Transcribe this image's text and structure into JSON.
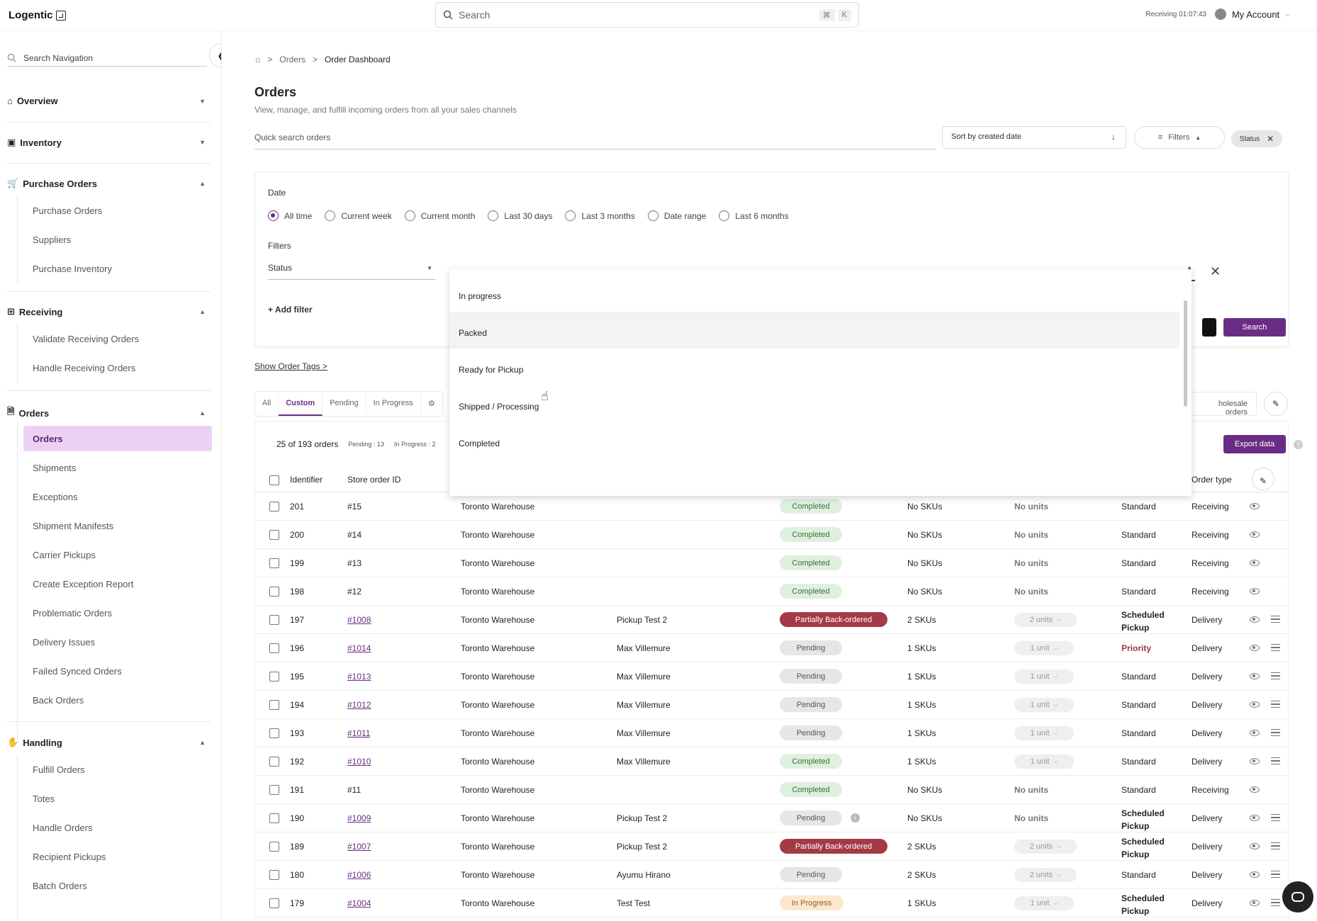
{
  "app": {
    "name": "Logentic"
  },
  "topbar": {
    "search_placeholder": "Search",
    "kbd1": "⌘",
    "kbd2": "K",
    "timer": "Receiving 01:07:43",
    "account": "My Account"
  },
  "sidebar": {
    "search_placeholder": "Search Navigation",
    "sections": {
      "overview": "Overview",
      "inventory": "Inventory",
      "purchase_orders": "Purchase Orders",
      "receiving": "Receiving",
      "orders": "Orders",
      "handling": "Handling"
    },
    "purchase_items": [
      "Purchase Orders",
      "Suppliers",
      "Purchase Inventory"
    ],
    "receiving_items": [
      "Validate Receiving Orders",
      "Handle Receiving Orders"
    ],
    "orders_items": [
      "Orders",
      "Shipments",
      "Exceptions",
      "Shipment Manifests",
      "Carrier Pickups",
      "Create Exception Report",
      "Problematic Orders",
      "Delivery Issues",
      "Failed Synced Orders",
      "Back Orders"
    ],
    "handling_items": [
      "Fulfill Orders",
      "Totes",
      "Handle Orders",
      "Recipient Pickups",
      "Batch Orders"
    ]
  },
  "breadcrumb": {
    "level1": "Orders",
    "current": "Order Dashboard"
  },
  "page": {
    "title": "Orders",
    "subtitle": "View, manage, and fulfill incoming orders from all your sales channels",
    "quick_search_placeholder": "Quick search orders",
    "sort_label": "Sort by created date",
    "filters_label": "Filters",
    "status_chip": "Status"
  },
  "filter_panel": {
    "date_label": "Date",
    "date_options": [
      "All time",
      "Current week",
      "Current month",
      "Last 30 days",
      "Last 3 months",
      "Date range",
      "Last 6 months"
    ],
    "filters_label": "Filters",
    "status_field": "Status",
    "add_filter": "+ Add filter",
    "search_button": "Search"
  },
  "show_tags": "Show Order Tags >",
  "tabs": [
    "All",
    "Custom",
    "Pending",
    "In Progress"
  ],
  "wholesale_tab": "holesale orders",
  "summary": {
    "count": "25 of 193 orders",
    "pending": "Pending : 13",
    "in_progress": "In Progress : 2",
    "export": "Export data"
  },
  "table": {
    "headers": {
      "identifier": "Identifier",
      "store_order_id": "Store order ID",
      "order_type": "Order type"
    },
    "rows": [
      {
        "id": "201",
        "store": "#15",
        "wh": "Toronto Warehouse",
        "cust": "",
        "status": "Completed",
        "skus": "No SKUs",
        "units": "No units",
        "prio1": "Standard",
        "prio2": "",
        "type": "Receiving"
      },
      {
        "id": "200",
        "store": "#14",
        "wh": "Toronto Warehouse",
        "cust": "",
        "status": "Completed",
        "skus": "No SKUs",
        "units": "No units",
        "prio1": "Standard",
        "prio2": "",
        "type": "Receiving"
      },
      {
        "id": "199",
        "store": "#13",
        "wh": "Toronto Warehouse",
        "cust": "",
        "status": "Completed",
        "skus": "No SKUs",
        "units": "No units",
        "prio1": "Standard",
        "prio2": "",
        "type": "Receiving"
      },
      {
        "id": "198",
        "store": "#12",
        "wh": "Toronto Warehouse",
        "cust": "",
        "status": "Completed",
        "skus": "No SKUs",
        "units": "No units",
        "prio1": "Standard",
        "prio2": "",
        "type": "Receiving"
      },
      {
        "id": "197",
        "store": "#1008",
        "wh": "Toronto Warehouse",
        "cust": "Pickup Test 2",
        "status": "Partially Back-ordered",
        "skus": "2 SKUs",
        "units": "2 units",
        "prio1": "Scheduled",
        "prio2": "Pickup",
        "type": "Delivery"
      },
      {
        "id": "196",
        "store": "#1014",
        "wh": "Toronto Warehouse",
        "cust": "Max Villemure",
        "status": "Pending",
        "skus": "1 SKUs",
        "units": "1 unit",
        "prio1": "Priority",
        "prio2": "",
        "type": "Delivery"
      },
      {
        "id": "195",
        "store": "#1013",
        "wh": "Toronto Warehouse",
        "cust": "Max Villemure",
        "status": "Pending",
        "skus": "1 SKUs",
        "units": "1 unit",
        "prio1": "Standard",
        "prio2": "",
        "type": "Delivery"
      },
      {
        "id": "194",
        "store": "#1012",
        "wh": "Toronto Warehouse",
        "cust": "Max Villemure",
        "status": "Pending",
        "skus": "1 SKUs",
        "units": "1 unit",
        "prio1": "Standard",
        "prio2": "",
        "type": "Delivery"
      },
      {
        "id": "193",
        "store": "#1011",
        "wh": "Toronto Warehouse",
        "cust": "Max Villemure",
        "status": "Pending",
        "skus": "1 SKUs",
        "units": "1 unit",
        "prio1": "Standard",
        "prio2": "",
        "type": "Delivery"
      },
      {
        "id": "192",
        "store": "#1010",
        "wh": "Toronto Warehouse",
        "cust": "Max Villemure",
        "status": "Completed",
        "skus": "1 SKUs",
        "units": "1 unit",
        "prio1": "Standard",
        "prio2": "",
        "type": "Delivery"
      },
      {
        "id": "191",
        "store": "#11",
        "wh": "Toronto Warehouse",
        "cust": "",
        "status": "Completed",
        "skus": "No SKUs",
        "units": "No units",
        "prio1": "Standard",
        "prio2": "",
        "type": "Receiving"
      },
      {
        "id": "190",
        "store": "#1009",
        "wh": "Toronto Warehouse",
        "cust": "Pickup Test 2",
        "status": "Pending",
        "skus": "No SKUs",
        "units": "No units",
        "prio1": "Scheduled",
        "prio2": "Pickup",
        "type": "Delivery"
      },
      {
        "id": "189",
        "store": "#1007",
        "wh": "Toronto Warehouse",
        "cust": "Pickup Test 2",
        "status": "Partially Back-ordered",
        "skus": "2 SKUs",
        "units": "2 units",
        "prio1": "Scheduled",
        "prio2": "Pickup",
        "type": "Delivery"
      },
      {
        "id": "180",
        "store": "#1006",
        "wh": "Toronto Warehouse",
        "cust": "Ayumu Hirano",
        "status": "Pending",
        "skus": "2 SKUs",
        "units": "2 units",
        "prio1": "Standard",
        "prio2": "",
        "type": "Delivery"
      },
      {
        "id": "179",
        "store": "#1004",
        "wh": "Toronto Warehouse",
        "cust": "Test Test",
        "status": "In Progress",
        "skus": "1 SKUs",
        "units": "1 unit",
        "prio1": "Scheduled",
        "prio2": "Pickup",
        "type": "Delivery"
      }
    ]
  },
  "dropdown": {
    "options": [
      "In progress",
      "Packed",
      "Ready for Pickup",
      "Shipped / Processing",
      "Completed"
    ]
  },
  "colors": {
    "accent": "#6b2d83",
    "nav_active_bg": "#ecd1f4"
  }
}
